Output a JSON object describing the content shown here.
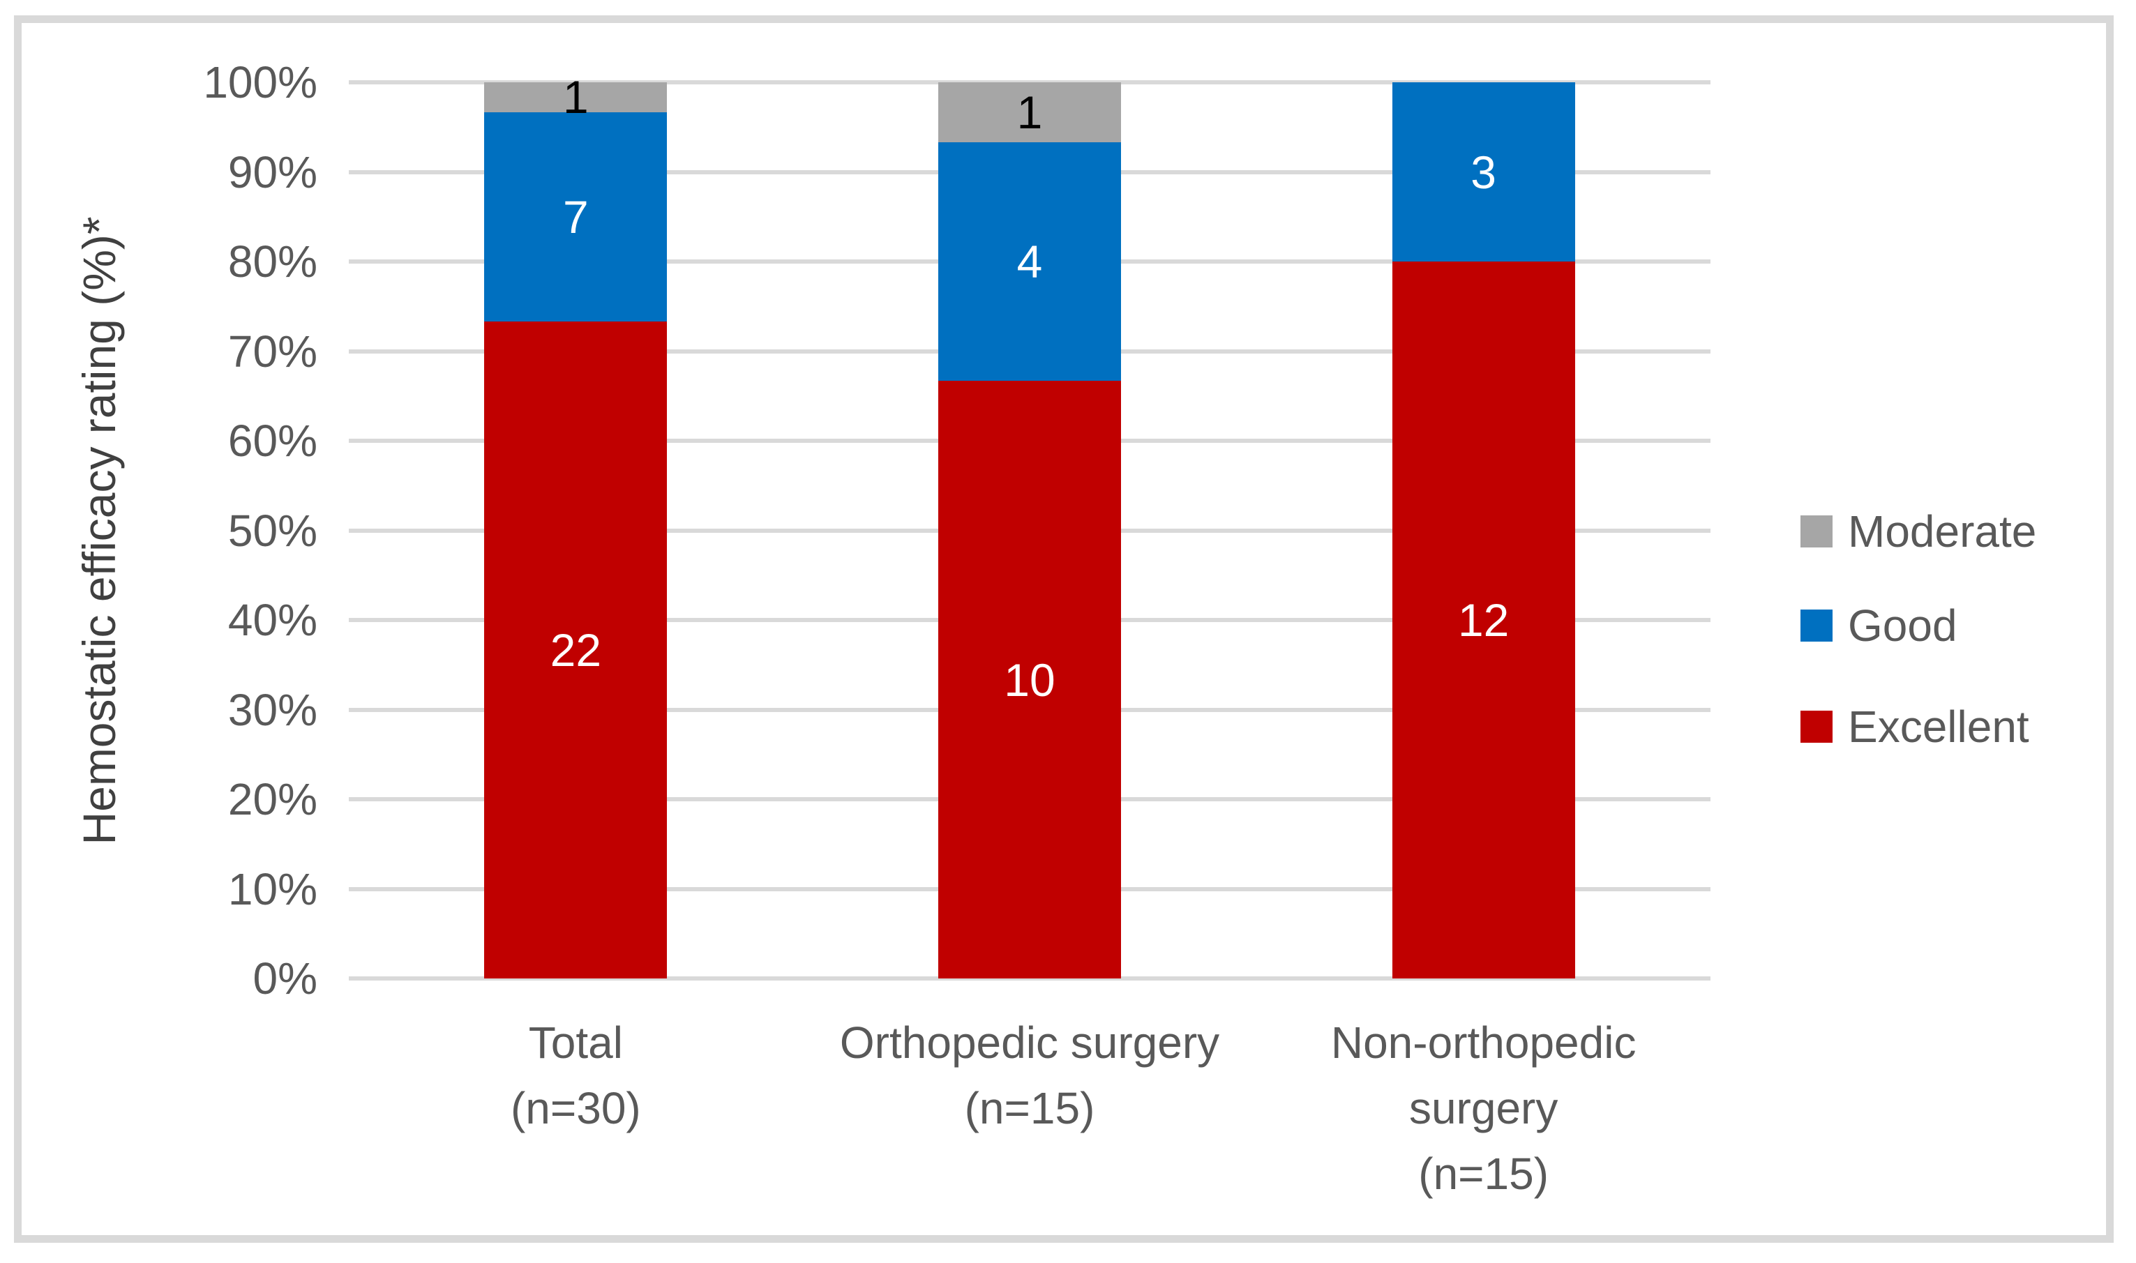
{
  "figure": {
    "background_color": "#FFFFFF",
    "frame_border_color": "#D9D9D9"
  },
  "chart_data": {
    "type": "bar",
    "stacked": true,
    "orientation": "vertical",
    "title": "",
    "xlabel": "",
    "ylabel": "Hemostatic efficacy rating (%)*",
    "ylim": [
      0,
      100
    ],
    "yticks": [
      "0%",
      "10%",
      "20%",
      "30%",
      "40%",
      "50%",
      "60%",
      "70%",
      "80%",
      "90%",
      "100%"
    ],
    "grid": true,
    "gridline_color": "#D9D9D9",
    "axis_text_color": "#595959",
    "values_are": "counts (bar segment height = count / n as % of total)",
    "categories": [
      {
        "lines": [
          "Total",
          "(n=30)"
        ],
        "n": 30
      },
      {
        "lines": [
          "Orthopedic surgery",
          "(n=15)"
        ],
        "n": 15
      },
      {
        "lines": [
          "Non-orthopedic",
          "surgery",
          "(n=15)"
        ],
        "n": 15
      }
    ],
    "series": [
      {
        "name": "Excellent",
        "color": "#C00000",
        "label_color": "#FFFFFF",
        "values": [
          22,
          10,
          12
        ]
      },
      {
        "name": "Good",
        "color": "#0070C0",
        "label_color": "#FFFFFF",
        "values": [
          7,
          4,
          3
        ]
      },
      {
        "name": "Moderate",
        "color": "#A6A6A6",
        "label_color": "#000000",
        "values": [
          1,
          1,
          0
        ]
      }
    ],
    "legend": {
      "position": "right",
      "order": [
        "Moderate",
        "Good",
        "Excellent"
      ]
    }
  }
}
